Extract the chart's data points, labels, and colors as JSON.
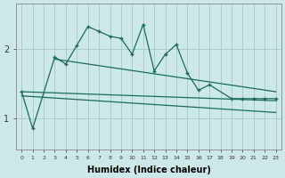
{
  "xlabel": "Humidex (Indice chaleur)",
  "background_color": "#cce8e8",
  "grid_color": "#aacccc",
  "line_color": "#1a6b5a",
  "x_values": [
    0,
    1,
    2,
    3,
    4,
    5,
    6,
    7,
    8,
    9,
    10,
    11,
    12,
    13,
    14,
    15,
    16,
    17,
    18,
    19,
    20,
    21,
    22,
    23
  ],
  "zigzag_x": [
    0,
    1,
    3,
    4,
    5,
    6,
    7,
    8,
    9,
    10,
    11,
    12,
    13,
    14,
    15,
    16,
    17,
    19,
    20,
    21,
    22,
    23
  ],
  "zigzag_y": [
    1.38,
    0.85,
    1.88,
    1.78,
    2.05,
    2.32,
    2.25,
    2.18,
    2.15,
    1.92,
    2.35,
    1.68,
    1.92,
    2.06,
    1.65,
    1.4,
    1.48,
    1.28,
    1.28,
    1.28,
    1.28,
    1.28
  ],
  "line1_x": [
    0,
    23
  ],
  "line1_y": [
    1.38,
    1.25
  ],
  "line2_x": [
    0,
    23
  ],
  "line2_y": [
    1.32,
    1.08
  ],
  "line3_x": [
    3,
    23
  ],
  "line3_y": [
    1.85,
    1.38
  ],
  "yticks": [
    1,
    2
  ],
  "ylim": [
    0.55,
    2.65
  ],
  "xlim": [
    -0.5,
    23.5
  ]
}
